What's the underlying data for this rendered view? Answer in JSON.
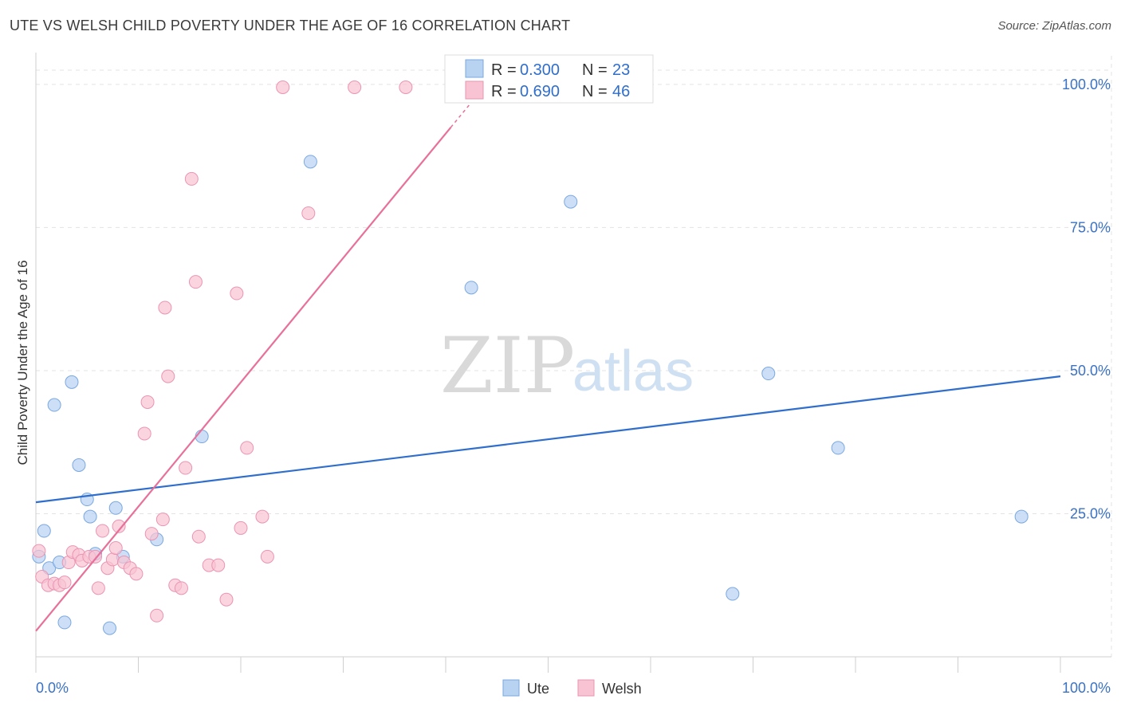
{
  "title": "UTE VS WELSH CHILD POVERTY UNDER THE AGE OF 16 CORRELATION CHART",
  "source": "Source: ZipAtlas.com",
  "watermark": {
    "zip": "ZIP",
    "atlas": "atlas"
  },
  "colors": {
    "ute_fill": "#b8d2f2",
    "ute_stroke": "#7aa8e0",
    "ute_line": "#2f6ecc",
    "welsh_fill": "#f8c3d3",
    "welsh_stroke": "#eb94b2",
    "welsh_line": "#e8709a",
    "grid": "#e3e3e3",
    "axis_text": "#3b72c4"
  },
  "legend": {
    "rows": [
      {
        "series": "Ute",
        "r_label": "R = ",
        "r_value": "0.300",
        "n_label": "N = ",
        "n_value": "23"
      },
      {
        "series": "Welsh",
        "r_label": "R = ",
        "r_value": "0.690",
        "n_label": "N = ",
        "n_value": "46"
      }
    ]
  },
  "bottom_legend": [
    "Ute",
    "Welsh"
  ],
  "chart_data": {
    "type": "scatter",
    "title": "UTE VS WELSH CHILD POVERTY UNDER THE AGE OF 16 CORRELATION CHART",
    "xlabel": "",
    "ylabel": "Child Poverty Under the Age of 16",
    "xlim": [
      0,
      100
    ],
    "ylim": [
      0,
      105
    ],
    "x_tick_labels": [
      "0.0%",
      "100.0%"
    ],
    "y_ticks": [
      25,
      50,
      75,
      100
    ],
    "y_tick_labels": [
      "25.0%",
      "50.0%",
      "75.0%",
      "100.0%"
    ],
    "series": [
      {
        "name": "Ute",
        "points": [
          [
            0.3,
            17.5
          ],
          [
            0.8,
            22
          ],
          [
            1.3,
            15.5
          ],
          [
            1.8,
            44
          ],
          [
            2.3,
            16.5
          ],
          [
            2.8,
            6
          ],
          [
            3.5,
            48
          ],
          [
            4.2,
            33.5
          ],
          [
            5,
            27.5
          ],
          [
            5.3,
            24.5
          ],
          [
            5.8,
            18
          ],
          [
            7.8,
            26
          ],
          [
            7.2,
            5
          ],
          [
            8.5,
            17.5
          ],
          [
            11.8,
            20.5
          ],
          [
            16.2,
            38.5
          ],
          [
            26.8,
            86.5
          ],
          [
            42.5,
            64.5
          ],
          [
            52.2,
            79.5
          ],
          [
            68,
            11
          ],
          [
            71.5,
            49.5
          ],
          [
            78.3,
            36.5
          ],
          [
            96.2,
            24.5
          ]
        ],
        "trend": {
          "x": [
            0,
            100
          ],
          "y": [
            27,
            49
          ]
        }
      },
      {
        "name": "Welsh",
        "points": [
          [
            0.3,
            18.5
          ],
          [
            0.6,
            14
          ],
          [
            1.2,
            12.5
          ],
          [
            1.8,
            12.8
          ],
          [
            2.3,
            12.5
          ],
          [
            2.8,
            13
          ],
          [
            3.2,
            16.5
          ],
          [
            3.6,
            18.3
          ],
          [
            4.2,
            17.8
          ],
          [
            4.5,
            16.8
          ],
          [
            5.2,
            17.5
          ],
          [
            5.8,
            17.5
          ],
          [
            6.1,
            12
          ],
          [
            6.5,
            22
          ],
          [
            7,
            15.5
          ],
          [
            7.5,
            17
          ],
          [
            7.8,
            19
          ],
          [
            8.1,
            22.8
          ],
          [
            8.6,
            16.5
          ],
          [
            9.2,
            15.5
          ],
          [
            9.8,
            14.5
          ],
          [
            10.6,
            39
          ],
          [
            10.9,
            44.5
          ],
          [
            11.3,
            21.5
          ],
          [
            11.8,
            7.2
          ],
          [
            12.4,
            24
          ],
          [
            12.6,
            61
          ],
          [
            12.9,
            49
          ],
          [
            13.6,
            12.5
          ],
          [
            14.2,
            12
          ],
          [
            14.6,
            33
          ],
          [
            15.2,
            83.5
          ],
          [
            15.6,
            65.5
          ],
          [
            15.9,
            21
          ],
          [
            16.9,
            16
          ],
          [
            17.8,
            16
          ],
          [
            18.6,
            10
          ],
          [
            19.6,
            63.5
          ],
          [
            20,
            22.5
          ],
          [
            20.6,
            36.5
          ],
          [
            22.1,
            24.5
          ],
          [
            22.6,
            17.5
          ],
          [
            24.1,
            99.5
          ],
          [
            26.6,
            77.5
          ],
          [
            31.1,
            99.5
          ],
          [
            36.1,
            99.5
          ]
        ],
        "trend": {
          "x": [
            0,
            40.5
          ],
          "y": [
            4.5,
            92.5
          ]
        }
      }
    ],
    "legend_position": "top-center",
    "grid": true
  }
}
